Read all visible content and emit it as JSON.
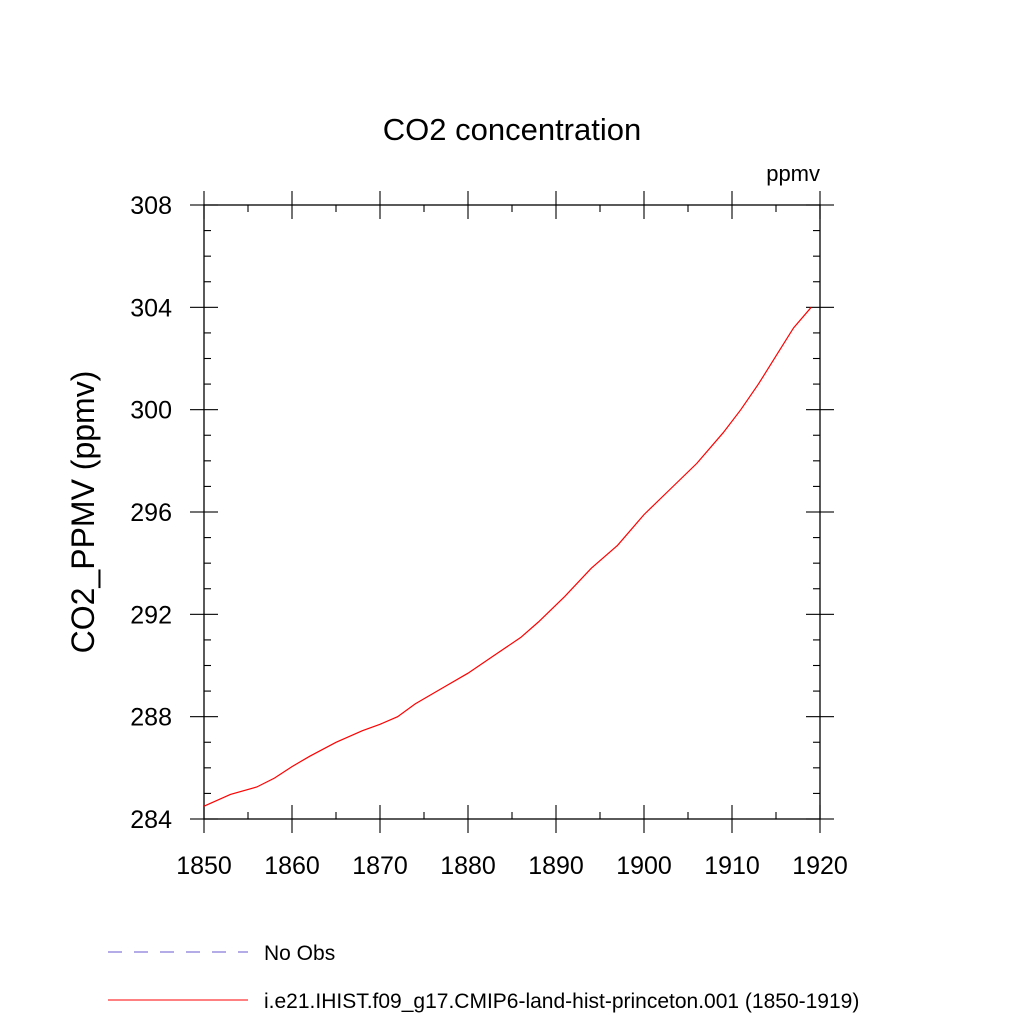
{
  "chart_data": {
    "type": "line",
    "title": "CO2 concentration",
    "units_label": "ppmv",
    "xlabel": "",
    "ylabel": "CO2_PPMV  (ppmv)",
    "xlim": [
      1850,
      1920
    ],
    "ylim": [
      284,
      308
    ],
    "x_ticks": [
      1850,
      1860,
      1870,
      1880,
      1890,
      1900,
      1910,
      1920
    ],
    "y_ticks": [
      284,
      288,
      292,
      296,
      300,
      304,
      308
    ],
    "grid": false,
    "legend_position": "bottom",
    "series": [
      {
        "name": "No Obs",
        "color": "#6a5acd",
        "style": "dashed",
        "x": [],
        "y": []
      },
      {
        "name": "i.e21.IHIST.f09_g17.CMIP6-land-hist-princeton.001 (1850-1919)",
        "color": "#ff0000",
        "style": "solid",
        "x": [
          1850,
          1853,
          1856,
          1858,
          1860,
          1862,
          1865,
          1868,
          1870,
          1872,
          1874,
          1877,
          1880,
          1883,
          1886,
          1888,
          1891,
          1894,
          1897,
          1900,
          1903,
          1906,
          1909,
          1911,
          1913,
          1915,
          1917,
          1919
        ],
        "y": [
          284.5,
          284.96,
          285.25,
          285.6,
          286.05,
          286.45,
          287.0,
          287.45,
          287.7,
          288.0,
          288.5,
          289.1,
          289.7,
          290.4,
          291.1,
          291.7,
          292.7,
          293.8,
          294.7,
          295.9,
          296.9,
          297.9,
          299.1,
          300.0,
          301.0,
          302.1,
          303.2,
          304.0
        ]
      }
    ]
  }
}
